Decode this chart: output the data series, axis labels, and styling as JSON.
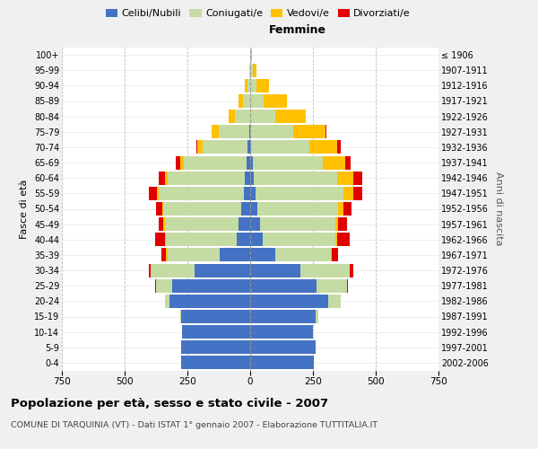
{
  "age_groups": [
    "0-4",
    "5-9",
    "10-14",
    "15-19",
    "20-24",
    "25-29",
    "30-34",
    "35-39",
    "40-44",
    "45-49",
    "50-54",
    "55-59",
    "60-64",
    "65-69",
    "70-74",
    "75-79",
    "80-84",
    "85-89",
    "90-94",
    "95-99",
    "100+"
  ],
  "birth_years": [
    "2002-2006",
    "1997-2001",
    "1992-1996",
    "1987-1991",
    "1982-1986",
    "1977-1981",
    "1972-1976",
    "1967-1971",
    "1962-1966",
    "1957-1961",
    "1952-1956",
    "1947-1951",
    "1942-1946",
    "1937-1941",
    "1932-1936",
    "1927-1931",
    "1922-1926",
    "1917-1921",
    "1912-1916",
    "1907-1911",
    "≤ 1906"
  ],
  "males": {
    "celibe": [
      275,
      275,
      270,
      275,
      320,
      310,
      220,
      120,
      55,
      45,
      35,
      25,
      20,
      15,
      10,
      5,
      0,
      0,
      0,
      0,
      0
    ],
    "coniugato": [
      0,
      0,
      0,
      5,
      20,
      65,
      175,
      210,
      280,
      295,
      310,
      340,
      310,
      250,
      180,
      120,
      60,
      30,
      12,
      3,
      0
    ],
    "vedovo": [
      0,
      0,
      0,
      0,
      0,
      0,
      0,
      5,
      5,
      5,
      5,
      5,
      10,
      15,
      20,
      30,
      25,
      15,
      8,
      2,
      0
    ],
    "divorziato": [
      0,
      0,
      0,
      0,
      0,
      5,
      10,
      20,
      40,
      20,
      25,
      35,
      25,
      15,
      5,
      0,
      0,
      0,
      0,
      0,
      0
    ]
  },
  "females": {
    "nubile": [
      255,
      260,
      250,
      260,
      310,
      265,
      200,
      100,
      50,
      40,
      30,
      20,
      15,
      10,
      5,
      0,
      0,
      0,
      0,
      0,
      0
    ],
    "coniugata": [
      0,
      0,
      0,
      10,
      50,
      120,
      195,
      220,
      290,
      300,
      320,
      350,
      330,
      280,
      230,
      170,
      100,
      55,
      25,
      10,
      2
    ],
    "vedova": [
      0,
      0,
      0,
      0,
      0,
      0,
      0,
      5,
      5,
      10,
      20,
      40,
      65,
      90,
      110,
      130,
      120,
      90,
      50,
      15,
      5
    ],
    "divorziata": [
      0,
      0,
      0,
      0,
      0,
      5,
      15,
      25,
      50,
      35,
      35,
      35,
      35,
      20,
      15,
      5,
      0,
      0,
      0,
      0,
      0
    ]
  },
  "colors": {
    "celibe": "#4472c4",
    "coniugato": "#c5dba4",
    "vedovo": "#ffc000",
    "divorziato": "#e00000"
  },
  "xlim": 750,
  "title": "Popolazione per età, sesso e stato civile - 2007",
  "subtitle": "COMUNE DI TARQUINIA (VT) - Dati ISTAT 1° gennaio 2007 - Elaborazione TUTTITALIA.IT",
  "ylabel": "Fasce di età",
  "right_ylabel": "Anni di nascita",
  "xlabel_right": "Femmine",
  "background_color": "#f0f0f0",
  "plot_bg_color": "#ffffff"
}
